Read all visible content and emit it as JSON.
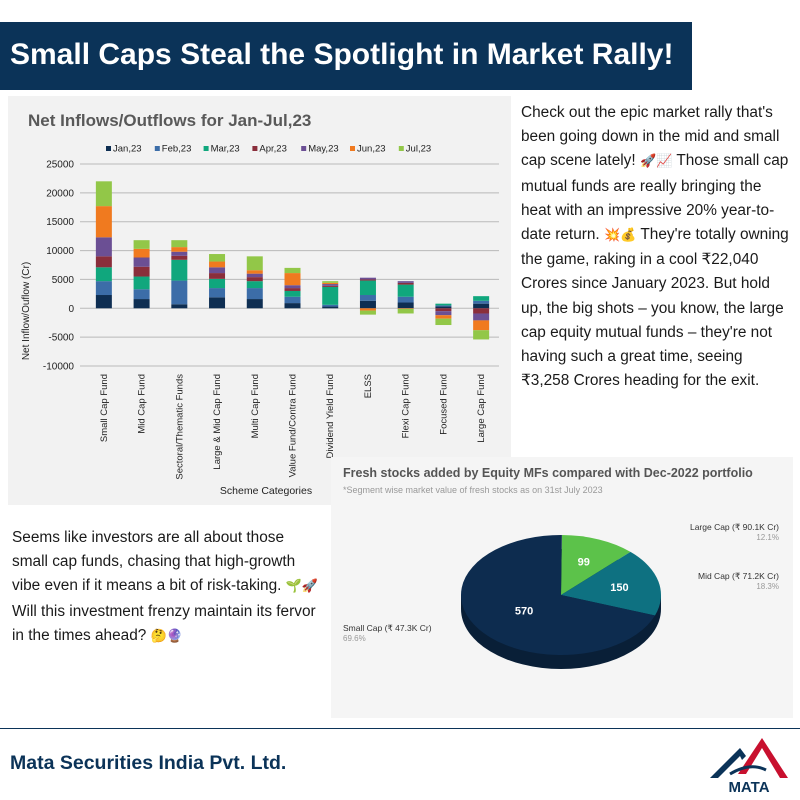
{
  "header": {
    "title": "Small Caps Steal the Spotlight in Market Rally!"
  },
  "paragraph1": {
    "text": "Check out the epic market rally that's been going down in the mid and small cap scene lately!",
    "emoji1": "🚀📈",
    "text2": "Those small cap mutual funds are really bringing the heat with an impressive 20% year-to-date return.",
    "emoji2": "💥💰",
    "text3": "They're totally owning the game, raking in a cool ₹22,040 Crores since January 2023. But hold up, the big shots – you know, the large cap equity mutual funds – they're not having such a great time, seeing ₹3,258 Crores heading for the exit."
  },
  "paragraph2": {
    "text": "Seems like investors are all about those small cap funds, chasing that high-growth vibe even if it means a bit of risk-taking.",
    "emoji1": "🌱🚀",
    "text2": "Will this investment frenzy maintain its fervor in the times ahead?",
    "emoji2": "🤔🔮"
  },
  "footer": {
    "company": "Mata Securities India Pvt. Ltd.",
    "logo_text": "MATA"
  },
  "colors": {
    "navy": "#0b3358",
    "logo_red": "#c8102e"
  },
  "chart_data": [
    {
      "type": "bar",
      "stacked": true,
      "title": "Net Inflows/Outflows for Jan-Jul,23",
      "xlabel": "Scheme Categories",
      "ylabel": "Net Inflow/Ouflow (Cr)",
      "ylim": [
        -10000,
        25000
      ],
      "yticks": [
        -10000,
        -5000,
        0,
        5000,
        10000,
        15000,
        20000,
        25000
      ],
      "grid": true,
      "legend_position": "top",
      "categories": [
        "Small Cap Fund",
        "Mid Cap Fund",
        "Sectoral/Thematic Funds",
        "Large & Mid Cap Fund",
        "Multi Cap Fund",
        "Value Fund/Contra Fund",
        "Dividend Yield Fund",
        "ELSS",
        "Flexi Cap Fund",
        "Focused Fund",
        "Large Cap Fund"
      ],
      "series": [
        {
          "name": "Jan,23",
          "color": "#0e2e52",
          "values": [
            2300,
            1600,
            700,
            1900,
            1600,
            900,
            300,
            1300,
            1000,
            300,
            800
          ]
        },
        {
          "name": "Feb,23",
          "color": "#3c6da8",
          "values": [
            2400,
            1700,
            4100,
            1600,
            1900,
            1100,
            300,
            1000,
            1000,
            200,
            500
          ]
        },
        {
          "name": "Mar,23",
          "color": "#10a77d",
          "values": [
            2400,
            2200,
            3600,
            1600,
            1200,
            1000,
            3100,
            2500,
            2100,
            300,
            800
          ]
        },
        {
          "name": "Apr,23",
          "color": "#8a2e3b",
          "values": [
            1900,
            1700,
            700,
            1000,
            700,
            500,
            200,
            200,
            300,
            -500,
            -900
          ]
        },
        {
          "name": "May,23",
          "color": "#6b4f94",
          "values": [
            3300,
            1600,
            700,
            1000,
            600,
            500,
            300,
            300,
            300,
            -700,
            -1200
          ]
        },
        {
          "name": "Jun,23",
          "color": "#f07a1f",
          "values": [
            5400,
            1500,
            800,
            1000,
            600,
            2100,
            200,
            -400,
            -100,
            -600,
            -1700
          ]
        },
        {
          "name": "Jul,23",
          "color": "#92c748",
          "values": [
            4300,
            1500,
            1200,
            1300,
            2400,
            900,
            300,
            -700,
            -800,
            -1100,
            -1600
          ]
        }
      ]
    },
    {
      "type": "pie",
      "title": "Fresh stocks added by Equity MFs compared with Dec-2022 portfolio",
      "subtitle": "*Segment wise market value of fresh stocks as on 31st July 2023",
      "slices": [
        {
          "label": "Large Cap (₹ 90.1K Cr)",
          "value": 99,
          "percent": "12.1%",
          "color": "#5cc24a"
        },
        {
          "label": "Mid Cap (₹ 71.2K Cr)",
          "value": 150,
          "percent": "18.3%",
          "color": "#0e7181"
        },
        {
          "label": "Small Cap (₹ 47.3K Cr)",
          "value": 570,
          "percent": "69.6%",
          "color": "#0d2c4f"
        }
      ]
    }
  ]
}
